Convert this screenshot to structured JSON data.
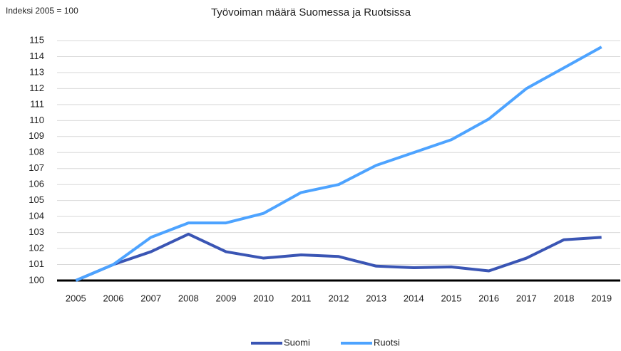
{
  "chart_data": {
    "type": "line",
    "title": "Työvoiman määrä Suomessa ja Ruotsissa",
    "y_label": "Indeksi 2005 = 100",
    "categories": [
      "2005",
      "2006",
      "2007",
      "2008",
      "2009",
      "2010",
      "2011",
      "2012",
      "2013",
      "2014",
      "2015",
      "2016",
      "2017",
      "2018",
      "2019"
    ],
    "series": [
      {
        "name": "Suomi",
        "color": "#3a55b4",
        "values": [
          100,
          101.0,
          101.8,
          102.9,
          101.8,
          101.4,
          101.6,
          101.5,
          100.9,
          100.8,
          100.85,
          100.6,
          101.4,
          102.55,
          102.7
        ]
      },
      {
        "name": "Ruotsi",
        "color": "#4da3ff",
        "values": [
          100,
          101.0,
          102.7,
          103.6,
          103.6,
          104.2,
          105.5,
          106.0,
          107.2,
          108.0,
          108.8,
          110.1,
          112.0,
          113.3,
          114.6
        ]
      }
    ],
    "ylim": [
      100,
      115
    ],
    "yticks": [
      100,
      101,
      102,
      103,
      104,
      105,
      106,
      107,
      108,
      109,
      110,
      111,
      112,
      113,
      114,
      115
    ],
    "grid": true,
    "legend": "bottom"
  }
}
